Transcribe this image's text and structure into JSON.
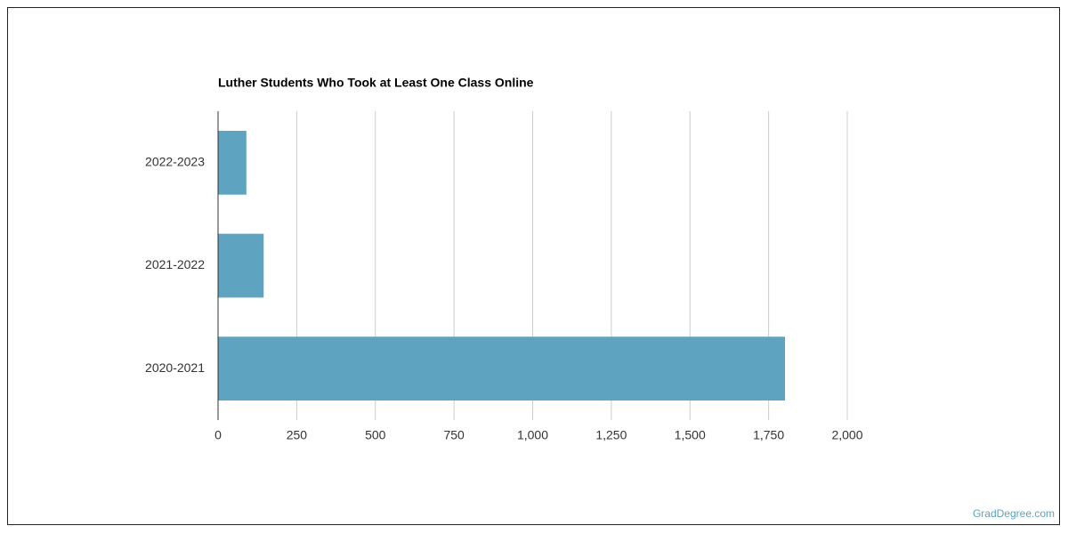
{
  "chart_data": {
    "type": "bar",
    "orientation": "horizontal",
    "title": "Luther Students Who Took at Least One Class Online",
    "categories": [
      "2022-2023",
      "2021-2022",
      "2020-2021"
    ],
    "values": [
      90,
      145,
      1802
    ],
    "color": "#5ea3bf",
    "xlim": [
      0,
      2000
    ],
    "xticks": [
      0,
      250,
      500,
      750,
      {
        "value": 1000,
        "label": "1,000"
      },
      {
        "value": 1250,
        "label": "1,250"
      },
      {
        "value": 1500,
        "label": "1,500"
      },
      {
        "value": 1750,
        "label": "1,750"
      },
      {
        "value": 2000,
        "label": "2,000"
      }
    ],
    "grid": true,
    "source": "GradDegree.com"
  }
}
